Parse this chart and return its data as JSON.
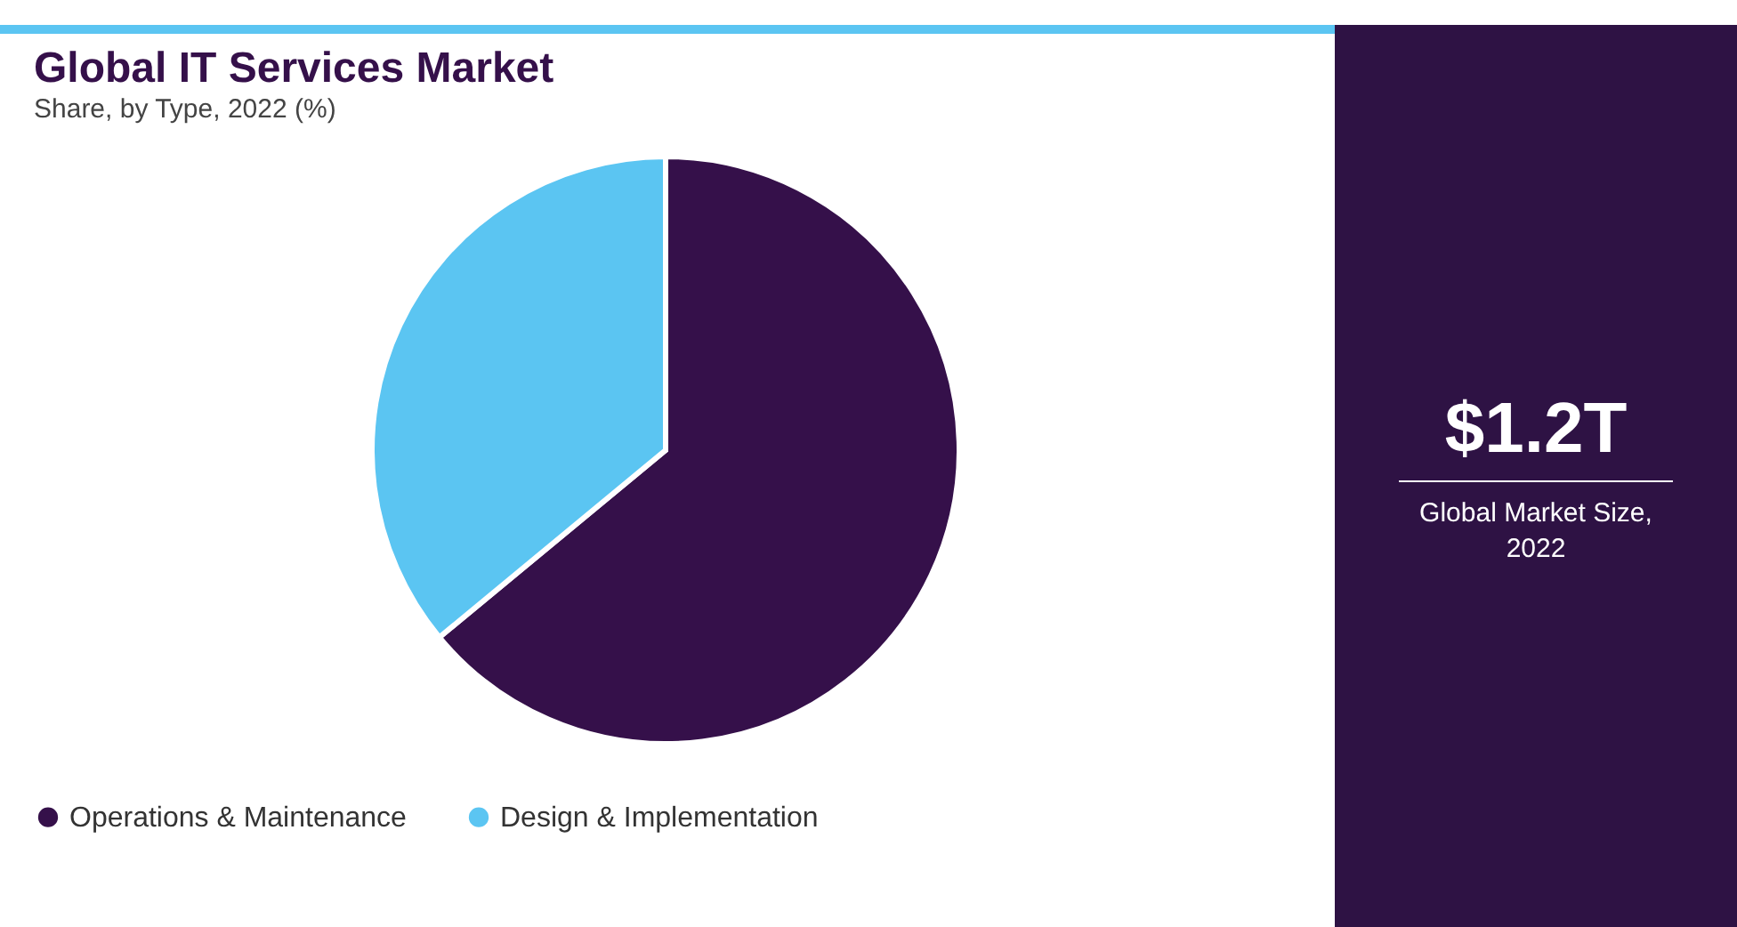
{
  "chart_data": {
    "type": "pie",
    "title": "Global IT Services Market",
    "subtitle": "Share, by Type, 2022 (%)",
    "categories": [
      "Operations & Maintenance",
      "Design & Implementation"
    ],
    "values": [
      64,
      36
    ],
    "colors": [
      "#35104a",
      "#5bc5f2"
    ],
    "legend": "bottom",
    "annotations": [
      "$1.2T",
      "Global Market Size, 2022"
    ]
  }
}
